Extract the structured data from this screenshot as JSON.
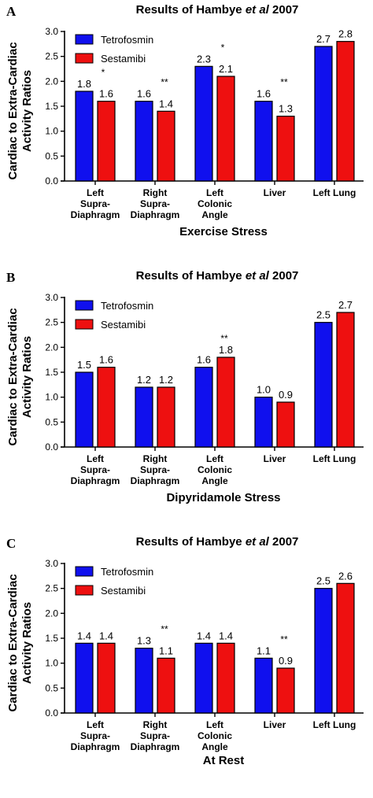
{
  "colors": {
    "tetrofosmin": "#1010ee",
    "sestamibi": "#ee1010",
    "axis": "#000000"
  },
  "chart_data": [
    {
      "panel": "A",
      "type": "bar",
      "title_prefix": "Results of Hambye ",
      "title_italic": "et al",
      "title_suffix": " 2007",
      "ylabel": [
        "Cardiac to Extra-Cardiac",
        "Activity Ratios"
      ],
      "xlabel": "Exercise Stress",
      "ylim": [
        0,
        3.0
      ],
      "yticks": [
        "0.0",
        "0.5",
        "1.0",
        "1.5",
        "2.0",
        "2.5",
        "3.0"
      ],
      "categories": [
        [
          "Left",
          "Supra-",
          "Diaphragm"
        ],
        [
          "Right",
          "Supra-",
          "Diaphragm"
        ],
        [
          "Left",
          "Colonic",
          "Angle"
        ],
        [
          "Liver"
        ],
        [
          "Left Lung"
        ]
      ],
      "legend": "top-left",
      "series": [
        {
          "name": "Tetrofosmin",
          "values": [
            1.8,
            1.6,
            2.3,
            1.6,
            2.7
          ],
          "labels": [
            "1.8",
            "1.6",
            "2.3",
            "1.6",
            "2.7"
          ]
        },
        {
          "name": "Sestamibi",
          "values": [
            1.6,
            1.4,
            2.1,
            1.3,
            2.8
          ],
          "labels": [
            "1.6",
            "1.4",
            "2.1",
            "1.3",
            "2.8"
          ]
        }
      ],
      "significance": [
        "*",
        "**",
        "*",
        "**",
        ""
      ]
    },
    {
      "panel": "B",
      "type": "bar",
      "title_prefix": "Results of Hambye ",
      "title_italic": "et al",
      "title_suffix": " 2007",
      "ylabel": [
        "Cardiac to Extra-Cardiac",
        "Activity Ratios"
      ],
      "xlabel": "Dipyridamole Stress",
      "ylim": [
        0,
        3.0
      ],
      "yticks": [
        "0.0",
        "0.5",
        "1.0",
        "1.5",
        "2.0",
        "2.5",
        "3.0"
      ],
      "categories": [
        [
          "Left",
          "Supra-",
          "Diaphragm"
        ],
        [
          "Right",
          "Supra-",
          "Diaphragm"
        ],
        [
          "Left",
          "Colonic",
          "Angle"
        ],
        [
          "Liver"
        ],
        [
          "Left Lung"
        ]
      ],
      "legend": "top-left",
      "series": [
        {
          "name": "Tetrofosmin",
          "values": [
            1.5,
            1.2,
            1.6,
            1.0,
            2.5
          ],
          "labels": [
            "1.5",
            "1.2",
            "1.6",
            "1.0",
            "2.5"
          ]
        },
        {
          "name": "Sestamibi",
          "values": [
            1.6,
            1.2,
            1.8,
            0.9,
            2.7
          ],
          "labels": [
            "1.6",
            "1.2",
            "1.8",
            "0.9",
            "2.7"
          ]
        }
      ],
      "significance": [
        "",
        "",
        "**",
        "",
        ""
      ]
    },
    {
      "panel": "C",
      "type": "bar",
      "title_prefix": "Results of Hambye ",
      "title_italic": "et al",
      "title_suffix": " 2007",
      "ylabel": [
        "Cardiac to Extra-Cardiac",
        "Activity Ratios"
      ],
      "xlabel": "At Rest",
      "ylim": [
        0,
        3.0
      ],
      "yticks": [
        "0.0",
        "0.5",
        "1.0",
        "1.5",
        "2.0",
        "2.5",
        "3.0"
      ],
      "categories": [
        [
          "Left",
          "Supra-",
          "Diaphragm"
        ],
        [
          "Right",
          "Supra-",
          "Diaphragm"
        ],
        [
          "Left",
          "Colonic",
          "Angle"
        ],
        [
          "Liver"
        ],
        [
          "Left Lung"
        ]
      ],
      "legend": "top-left",
      "series": [
        {
          "name": "Tetrofosmin",
          "values": [
            1.4,
            1.3,
            1.4,
            1.1,
            2.5
          ],
          "labels": [
            "1.4",
            "1.3",
            "1.4",
            "1.1",
            "2.5"
          ]
        },
        {
          "name": "Sestamibi",
          "values": [
            1.4,
            1.1,
            1.4,
            0.9,
            2.6
          ],
          "labels": [
            "1.4",
            "1.1",
            "1.4",
            "0.9",
            "2.6"
          ]
        }
      ],
      "significance": [
        "",
        "**",
        "",
        "**",
        ""
      ]
    }
  ]
}
